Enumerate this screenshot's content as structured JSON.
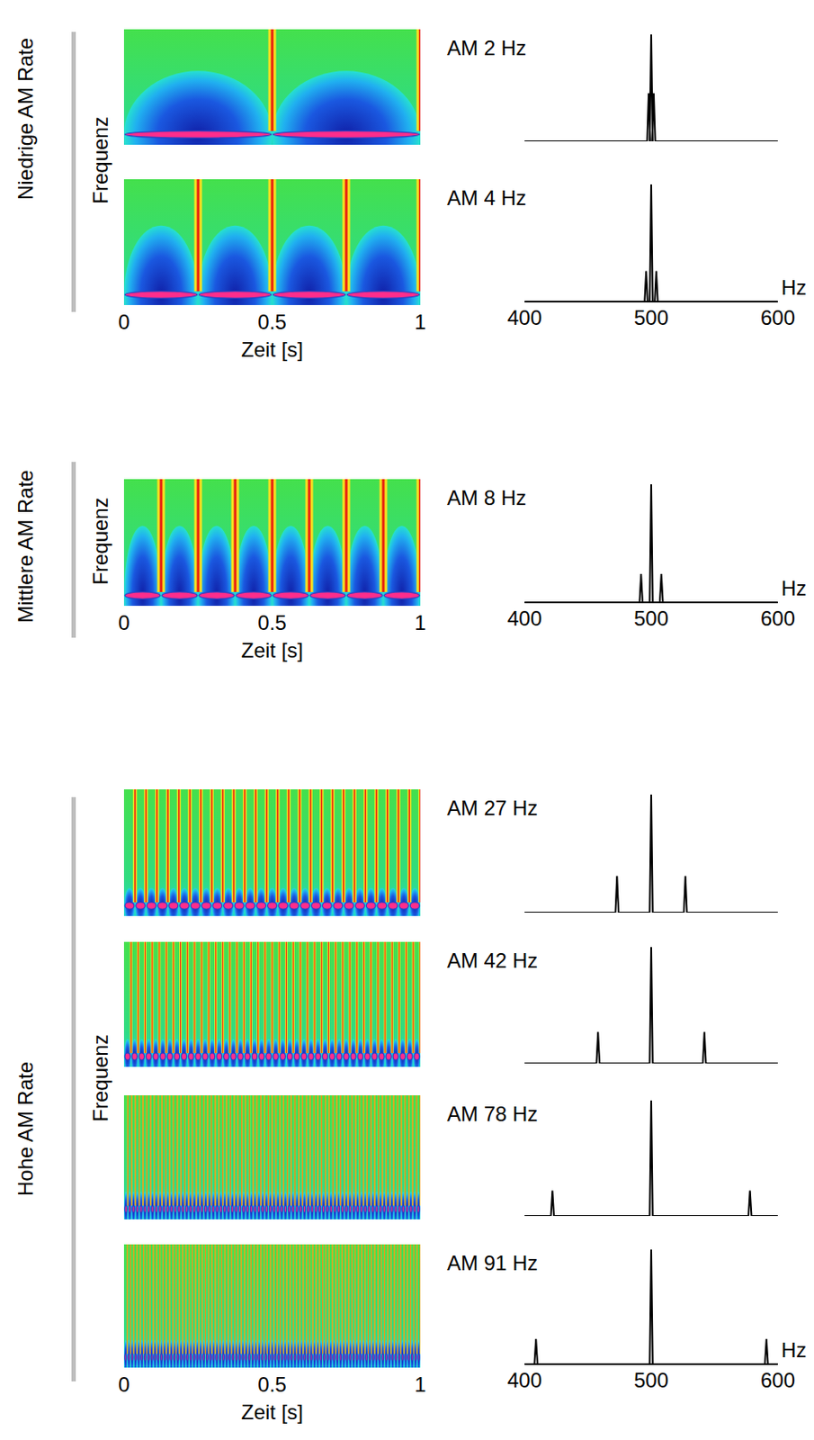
{
  "chart_data": {
    "type": "figure",
    "groups": [
      {
        "label": "Niedrige AM Rate",
        "spectrogram": {
          "type": "heatmap",
          "xlabel": "Zeit [s]",
          "ylabel": "Frequenz",
          "xlim": [
            0,
            1
          ],
          "xticks": [
            0,
            0.5,
            1
          ]
        },
        "rows": [
          {
            "title": "AM 2 Hz",
            "am_rate": 2,
            "spectrum": {
              "type": "line",
              "x": [
                498,
                500,
                502
              ],
              "values": [
                0.45,
                1,
                0.45
              ],
              "xlim": [
                400,
                600
              ],
              "ylim": [
                0,
                1
              ],
              "tick_labels": false
            }
          },
          {
            "title": "AM 4 Hz",
            "am_rate": 4,
            "spectrum": {
              "type": "line",
              "x": [
                496,
                500,
                504
              ],
              "values": [
                0.26,
                1,
                0.26
              ],
              "xlim": [
                400,
                600
              ],
              "ylim": [
                0,
                1
              ],
              "xticks": [
                400,
                500,
                600
              ],
              "xlabel": "Hz",
              "tick_labels": "x"
            }
          }
        ]
      },
      {
        "label": "Mittlere AM Rate",
        "spectrogram": {
          "type": "heatmap",
          "xlabel": "Zeit [s]",
          "ylabel": "Frequenz",
          "xlim": [
            0,
            1
          ],
          "xticks": [
            0,
            0.5,
            1
          ]
        },
        "rows": [
          {
            "title": "AM 8 Hz",
            "am_rate": 8,
            "spectrum": {
              "type": "line",
              "x": [
                492,
                500,
                508
              ],
              "values": [
                0.24,
                1,
                0.24
              ],
              "xlim": [
                400,
                600
              ],
              "ylim": [
                0,
                1
              ],
              "xticks": [
                400,
                500,
                600
              ],
              "xlabel": "Hz",
              "tick_labels": "x"
            }
          }
        ]
      },
      {
        "label": "Hohe AM Rate",
        "spectrogram": {
          "type": "heatmap",
          "xlabel": "Zeit [s]",
          "ylabel": "Frequenz",
          "xlim": [
            0,
            1
          ],
          "xticks": [
            0,
            0.5,
            1
          ]
        },
        "rows": [
          {
            "title": "AM 27 Hz",
            "am_rate": 27,
            "spectrum": {
              "type": "line",
              "x": [
                473,
                500,
                527
              ],
              "values": [
                0.31,
                1,
                0.31
              ],
              "xlim": [
                400,
                600
              ],
              "ylim": [
                0,
                1
              ],
              "tick_labels": false
            }
          },
          {
            "title": "AM 42 Hz",
            "am_rate": 42,
            "spectrum": {
              "type": "line",
              "x": [
                458,
                500,
                542
              ],
              "values": [
                0.27,
                1,
                0.27
              ],
              "xlim": [
                400,
                600
              ],
              "ylim": [
                0,
                1
              ],
              "tick_labels": false
            }
          },
          {
            "title": "AM 78 Hz",
            "am_rate": 78,
            "spectrum": {
              "type": "line",
              "x": [
                422,
                500,
                578
              ],
              "values": [
                0.22,
                1,
                0.22
              ],
              "xlim": [
                400,
                600
              ],
              "ylim": [
                0,
                1
              ],
              "tick_labels": false
            }
          },
          {
            "title": "AM 91 Hz",
            "am_rate": 91,
            "spectrum": {
              "type": "line",
              "x": [
                409,
                500,
                591
              ],
              "values": [
                0.22,
                1,
                0.22
              ],
              "xlim": [
                400,
                600
              ],
              "ylim": [
                0,
                1
              ],
              "xticks": [
                400,
                500,
                600
              ],
              "xlabel": "Hz",
              "tick_labels": "x"
            }
          }
        ]
      }
    ]
  }
}
